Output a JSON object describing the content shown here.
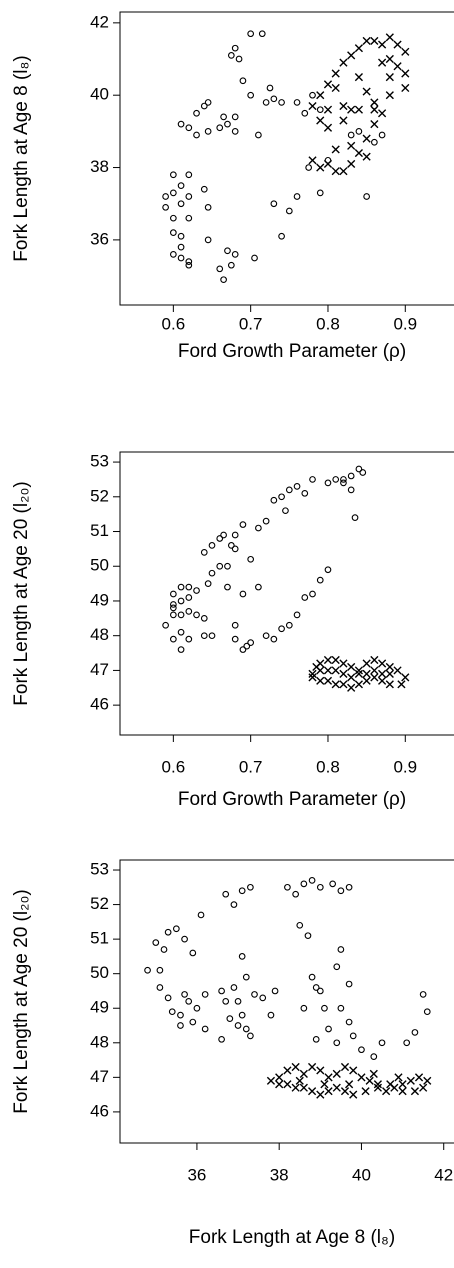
{
  "chart_data": [
    {
      "type": "scatter",
      "xlabel": "Ford Growth Parameter (ρ)",
      "ylabel": "Fork Length at Age 8 (l₈)",
      "xlim": [
        0.531,
        0.963
      ],
      "ylim": [
        34.2,
        42.3
      ],
      "xticks": [
        0.6,
        0.7,
        0.8,
        0.9
      ],
      "yticks": [
        36,
        38,
        40,
        42
      ],
      "series": [
        {
          "marker": "o",
          "color": "#000000",
          "x": [
            0.59,
            0.6,
            0.59,
            0.6,
            0.61,
            0.6,
            0.61,
            0.6,
            0.61,
            0.62,
            0.62,
            0.6,
            0.61,
            0.62,
            0.62,
            0.62,
            0.61,
            0.64,
            0.645,
            0.645,
            0.61,
            0.62,
            0.63,
            0.63,
            0.64,
            0.645,
            0.645,
            0.66,
            0.665,
            0.67,
            0.68,
            0.68,
            0.66,
            0.665,
            0.67,
            0.675,
            0.68,
            0.705,
            0.675,
            0.68,
            0.685,
            0.7,
            0.715,
            0.69,
            0.7,
            0.72,
            0.73,
            0.74,
            0.725,
            0.71,
            0.73,
            0.74,
            0.75,
            0.76,
            0.76,
            0.77,
            0.775,
            0.79,
            0.8,
            0.83,
            0.84,
            0.86,
            0.87,
            0.85,
            0.86,
            0.79,
            0.78
          ],
          "values": [
            37.2,
            37.3,
            36.9,
            36.6,
            37.0,
            36.2,
            35.8,
            35.6,
            35.5,
            35.4,
            35.3,
            37.8,
            37.5,
            37.8,
            37.2,
            36.6,
            36.1,
            37.4,
            36.9,
            36.0,
            39.2,
            39.1,
            39.5,
            38.9,
            39.7,
            39.8,
            39.0,
            39.1,
            39.4,
            39.2,
            39.0,
            39.4,
            35.2,
            34.9,
            35.7,
            35.3,
            35.6,
            35.5,
            41.1,
            41.3,
            41.0,
            41.7,
            41.7,
            40.4,
            40.0,
            39.8,
            39.9,
            39.8,
            40.2,
            38.9,
            37.0,
            36.1,
            36.8,
            37.2,
            39.8,
            39.5,
            38.0,
            37.3,
            38.2,
            38.9,
            39.0,
            38.7,
            38.9,
            37.2,
            39.7,
            39.6,
            40.0
          ]
        },
        {
          "marker": "x",
          "color": "#000000",
          "x": [
            0.78,
            0.79,
            0.8,
            0.81,
            0.82,
            0.83,
            0.84,
            0.85,
            0.86,
            0.87,
            0.88,
            0.89,
            0.9,
            0.89,
            0.9,
            0.88,
            0.87,
            0.86,
            0.85,
            0.84,
            0.83,
            0.82,
            0.81,
            0.8,
            0.79,
            0.78,
            0.8,
            0.82,
            0.84,
            0.86,
            0.88,
            0.8,
            0.82,
            0.83,
            0.85,
            0.87,
            0.84,
            0.81,
            0.79,
            0.86,
            0.83,
            0.85,
            0.88,
            0.9,
            0.81
          ],
          "values": [
            39.7,
            40.0,
            40.3,
            40.6,
            40.9,
            41.1,
            41.3,
            41.5,
            41.5,
            41.4,
            41.6,
            41.4,
            41.2,
            40.8,
            40.2,
            40.0,
            39.5,
            39.2,
            38.8,
            38.4,
            38.1,
            37.9,
            37.9,
            38.1,
            38.0,
            38.2,
            39.1,
            39.3,
            39.6,
            39.8,
            40.5,
            39.6,
            39.7,
            38.6,
            40.1,
            40.9,
            40.5,
            38.5,
            39.3,
            39.6,
            39.6,
            38.3,
            41.0,
            40.6,
            40.2
          ]
        }
      ]
    },
    {
      "type": "scatter",
      "xlabel": "Ford Growth Parameter (ρ)",
      "ylabel": "Fork Length at Age 20 (l₂₀)",
      "xlim": [
        0.531,
        0.963
      ],
      "ylim": [
        45.14,
        53.29
      ],
      "xticks": [
        0.6,
        0.7,
        0.8,
        0.9
      ],
      "yticks": [
        46,
        47,
        48,
        49,
        50,
        51,
        52,
        53
      ],
      "series": [
        {
          "marker": "o",
          "color": "#000000",
          "x": [
            0.59,
            0.6,
            0.6,
            0.6,
            0.61,
            0.62,
            0.61,
            0.6,
            0.61,
            0.62,
            0.62,
            0.63,
            0.63,
            0.61,
            0.62,
            0.64,
            0.64,
            0.645,
            0.65,
            0.64,
            0.65,
            0.66,
            0.66,
            0.67,
            0.665,
            0.675,
            0.68,
            0.68,
            0.67,
            0.68,
            0.68,
            0.69,
            0.695,
            0.7,
            0.69,
            0.69,
            0.7,
            0.71,
            0.72,
            0.73,
            0.74,
            0.745,
            0.75,
            0.76,
            0.77,
            0.78,
            0.8,
            0.82,
            0.83,
            0.84,
            0.845,
            0.82,
            0.81,
            0.83,
            0.835,
            0.61,
            0.65,
            0.71,
            0.72,
            0.73,
            0.74,
            0.75,
            0.76,
            0.77,
            0.78,
            0.79,
            0.8,
            0.6
          ],
          "values": [
            48.3,
            48.6,
            48.9,
            49.2,
            49.4,
            49.4,
            49.0,
            48.8,
            48.6,
            48.7,
            49.1,
            49.3,
            48.6,
            48.1,
            47.9,
            48.0,
            48.5,
            49.5,
            49.8,
            50.4,
            50.6,
            50.8,
            50.0,
            50.0,
            50.9,
            50.6,
            50.9,
            50.5,
            49.4,
            48.3,
            47.9,
            47.6,
            47.7,
            47.8,
            49.2,
            51.2,
            50.2,
            51.1,
            51.3,
            51.9,
            52.0,
            51.6,
            52.2,
            52.3,
            52.1,
            52.5,
            52.4,
            52.5,
            52.6,
            52.8,
            52.7,
            52.4,
            52.5,
            52.2,
            51.4,
            47.6,
            48.0,
            49.4,
            48.0,
            47.9,
            48.2,
            48.3,
            48.6,
            49.1,
            49.2,
            49.6,
            49.9,
            47.9
          ]
        },
        {
          "marker": "x",
          "color": "#000000",
          "x": [
            0.78,
            0.785,
            0.79,
            0.8,
            0.81,
            0.82,
            0.83,
            0.84,
            0.85,
            0.86,
            0.87,
            0.88,
            0.89,
            0.9,
            0.895,
            0.88,
            0.87,
            0.86,
            0.85,
            0.84,
            0.83,
            0.82,
            0.81,
            0.8,
            0.79,
            0.78,
            0.8,
            0.82,
            0.84,
            0.86,
            0.88,
            0.81,
            0.83,
            0.85,
            0.87,
            0.79
          ],
          "values": [
            46.9,
            47.1,
            47.2,
            47.3,
            47.3,
            47.2,
            47.1,
            47.0,
            47.2,
            47.3,
            47.2,
            47.1,
            47.0,
            46.8,
            46.6,
            46.6,
            46.7,
            46.8,
            46.7,
            46.6,
            46.5,
            46.6,
            46.6,
            46.7,
            46.7,
            46.8,
            47.0,
            46.9,
            46.9,
            47.0,
            46.9,
            47.0,
            46.8,
            46.9,
            46.9,
            47.0
          ]
        }
      ]
    },
    {
      "type": "scatter",
      "xlabel": "Fork Length at Age 8 (l₈)",
      "ylabel": "Fork Length at Age 20 (l₂₀)",
      "xlim": [
        34.13,
        42.25
      ],
      "ylim": [
        45.1,
        53.29
      ],
      "xticks": [
        36,
        38,
        40,
        42
      ],
      "yticks": [
        46,
        47,
        48,
        49,
        50,
        51,
        52,
        53
      ],
      "series": [
        {
          "marker": "o",
          "color": "#000000",
          "x": [
            34.8,
            35.0,
            35.2,
            35.3,
            35.5,
            35.7,
            35.9,
            36.1,
            35.1,
            35.1,
            35.3,
            35.4,
            35.6,
            35.7,
            35.8,
            35.9,
            35.6,
            36.0,
            36.2,
            36.2,
            36.6,
            36.7,
            36.6,
            36.8,
            36.9,
            37.0,
            37.1,
            37.2,
            37.3,
            37.0,
            37.1,
            37.2,
            37.4,
            37.6,
            37.8,
            37.9,
            36.7,
            36.9,
            37.1,
            37.3,
            38.2,
            38.4,
            38.6,
            38.8,
            39.0,
            39.3,
            39.5,
            39.7,
            38.5,
            38.7,
            38.8,
            38.9,
            39.0,
            39.1,
            39.2,
            39.4,
            39.5,
            39.7,
            39.7,
            39.8,
            40.0,
            40.3,
            38.6,
            38.9,
            39.5,
            41.1,
            41.3,
            41.5,
            41.6,
            40.5,
            39.4
          ],
          "values": [
            50.1,
            50.9,
            50.7,
            51.2,
            51.3,
            51.0,
            50.6,
            51.7,
            50.1,
            49.6,
            49.3,
            48.9,
            48.8,
            49.4,
            49.2,
            48.6,
            48.5,
            49.0,
            48.4,
            49.4,
            49.5,
            49.2,
            48.1,
            48.7,
            49.6,
            49.2,
            48.8,
            48.4,
            48.2,
            48.5,
            50.5,
            49.9,
            49.4,
            49.3,
            48.8,
            49.5,
            52.3,
            52.0,
            52.4,
            52.5,
            52.5,
            52.3,
            52.6,
            52.7,
            52.5,
            52.6,
            52.4,
            52.5,
            51.4,
            51.1,
            49.9,
            49.6,
            49.5,
            49.0,
            48.4,
            48.0,
            50.7,
            49.7,
            48.6,
            48.2,
            47.8,
            47.6,
            49.0,
            48.1,
            49.0,
            48.0,
            48.3,
            49.4,
            48.9,
            48.0,
            50.2
          ]
        },
        {
          "marker": "x",
          "color": "#000000",
          "x": [
            37.8,
            38.0,
            38.2,
            38.4,
            38.6,
            38.8,
            39.0,
            39.2,
            39.4,
            39.6,
            39.8,
            40.0,
            40.2,
            40.4,
            40.6,
            40.8,
            41.0,
            41.2,
            41.4,
            41.6,
            41.5,
            41.3,
            41.0,
            40.7,
            40.4,
            40.1,
            39.8,
            39.6,
            39.4,
            39.2,
            39.0,
            38.8,
            38.6,
            38.4,
            38.2,
            38.0,
            38.5,
            39.1,
            39.7,
            40.3,
            40.9
          ],
          "values": [
            46.9,
            47.0,
            47.2,
            47.3,
            47.1,
            47.3,
            47.2,
            47.0,
            47.1,
            47.3,
            47.2,
            47.0,
            46.9,
            46.7,
            46.6,
            46.7,
            46.8,
            46.9,
            47.0,
            46.9,
            46.7,
            46.6,
            46.6,
            46.8,
            46.8,
            46.6,
            46.5,
            46.6,
            46.7,
            46.6,
            46.5,
            46.6,
            46.7,
            46.7,
            46.8,
            46.8,
            46.9,
            46.8,
            46.8,
            47.1,
            47.0
          ]
        }
      ]
    }
  ]
}
